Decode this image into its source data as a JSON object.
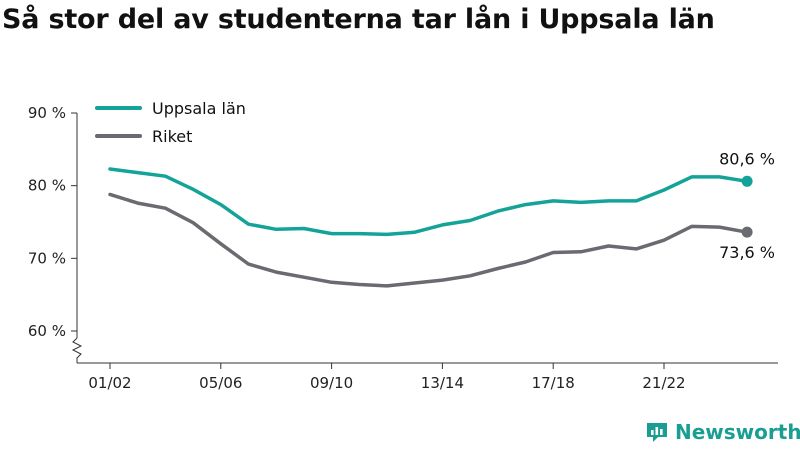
{
  "title": "Så stor del av studenterna tar lån i Uppsala län",
  "brand": "Newsworthy",
  "colors": {
    "uppsala": "#14a399",
    "riket": "#6a6b70",
    "axis": "#333333",
    "brand": "#1a9e93"
  },
  "chart_data": {
    "type": "line",
    "title": "Så stor del av studenterna tar lån i Uppsala län",
    "xlabel": "",
    "ylabel": "",
    "ylim": [
      57,
      93
    ],
    "y_ticks": [
      {
        "value": 60,
        "label": "60 %"
      },
      {
        "value": 70,
        "label": "70 %"
      },
      {
        "value": 80,
        "label": "80 %"
      },
      {
        "value": 90,
        "label": "90 %"
      }
    ],
    "x_tick_labels": [
      "01/02",
      "05/06",
      "09/10",
      "13/14",
      "17/18",
      "21/22"
    ],
    "x_tick_indices": [
      0,
      4,
      8,
      12,
      16,
      20
    ],
    "categories": [
      "01/02",
      "02/03",
      "03/04",
      "04/05",
      "05/06",
      "06/07",
      "07/08",
      "08/09",
      "09/10",
      "10/11",
      "11/12",
      "12/13",
      "13/14",
      "14/15",
      "15/16",
      "16/17",
      "17/18",
      "18/19",
      "19/20",
      "20/21",
      "21/22",
      "22/23",
      "23/24",
      "24/25"
    ],
    "series": [
      {
        "name": "Uppsala län",
        "values": [
          82.3,
          81.8,
          81.3,
          79.5,
          77.4,
          74.7,
          74.0,
          74.1,
          73.4,
          73.4,
          73.3,
          73.6,
          74.6,
          75.2,
          76.5,
          77.4,
          77.9,
          77.7,
          77.9,
          77.9,
          79.4,
          81.2,
          81.2,
          80.6
        ],
        "end_label": "80,6 %"
      },
      {
        "name": "Riket",
        "values": [
          78.8,
          77.6,
          76.9,
          74.9,
          72.0,
          69.2,
          68.1,
          67.4,
          66.7,
          66.4,
          66.2,
          66.6,
          67.0,
          67.6,
          68.6,
          69.5,
          70.8,
          70.9,
          71.7,
          71.3,
          72.5,
          74.4,
          74.3,
          73.6
        ],
        "end_label": "73,6 %"
      }
    ],
    "legend_placement": "top-left",
    "grid": false
  }
}
